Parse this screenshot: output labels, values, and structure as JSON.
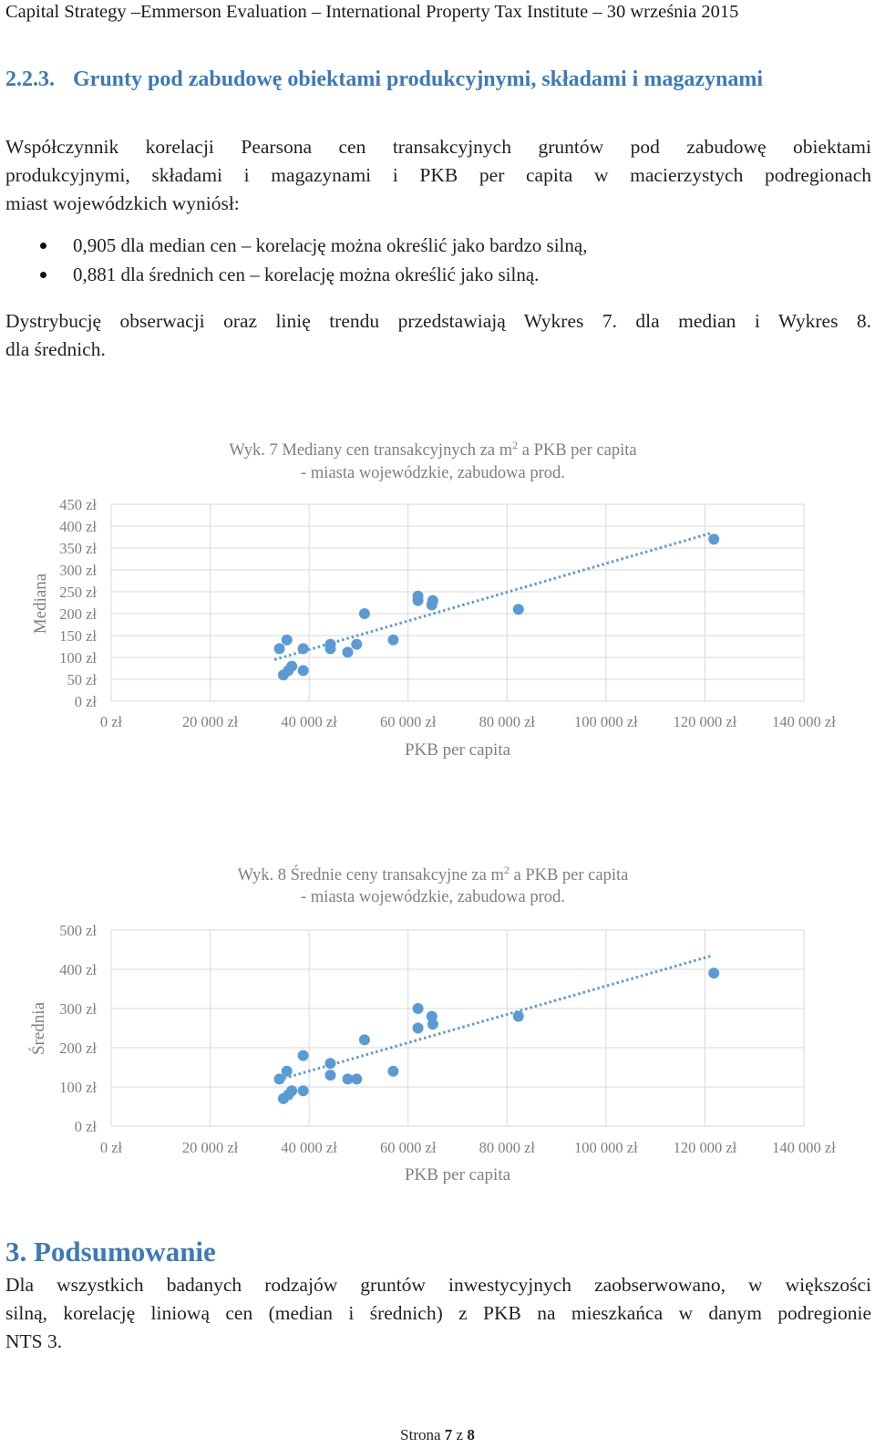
{
  "header": "Capital Strategy –Emmerson Evaluation – International Property Tax Institute – 30 września 2015",
  "section": {
    "number": "2.2.3.",
    "title": "Grunty pod zabudowę obiektami produkcyjnymi, składami i magazynami"
  },
  "intro_lines": [
    "Współczynnik korelacji Pearsona cen transakcyjnych gruntów pod zabudowę obiektami",
    "produkcyjnymi, składami i magazynami i PKB per capita w macierzystych podregionach",
    "miast wojewódzkich wyniósł:"
  ],
  "bullets": [
    "0,905 dla median cen – korelację można określić jako bardzo silną,",
    "0,881 dla średnich cen – korelację można określić jako silną."
  ],
  "distribution_lines": [
    "Dystrybucję obserwacji oraz linię trendu przedstawiają Wykres 7. dla median i Wykres 8.",
    "dla średnich."
  ],
  "chart_data": [
    {
      "type": "scatter",
      "title_pre": "Wyk. 7 Mediany cen transakcyjnych za m",
      "title_sup": "2",
      "title_post": " a PKB per capita",
      "title_line2": "- miasta wojewódzkie, zabudowa prod.",
      "xlabel": "PKB per capita",
      "ylabel": "Mediana",
      "xlim": [
        0,
        140000
      ],
      "ylim": [
        0,
        450
      ],
      "x_ticks": [
        0,
        20000,
        40000,
        60000,
        80000,
        100000,
        120000,
        140000
      ],
      "x_tick_labels": [
        "0 zł",
        "20 000 zł",
        "40 000 zł",
        "60 000 zł",
        "80 000 zł",
        "100 000 zł",
        "120 000 zł",
        "140 000 zł"
      ],
      "y_ticks": [
        0,
        50,
        100,
        150,
        200,
        250,
        300,
        350,
        400,
        450
      ],
      "y_tick_labels": [
        "0 zł",
        "50 zł",
        "100 zł",
        "150 zł",
        "200 zł",
        "250 zł",
        "300 zł",
        "350 zł",
        "400 zł",
        "450 zł"
      ],
      "points": [
        {
          "x": 34000,
          "y": 120
        },
        {
          "x": 35500,
          "y": 140
        },
        {
          "x": 34800,
          "y": 60
        },
        {
          "x": 35800,
          "y": 70
        },
        {
          "x": 36500,
          "y": 80
        },
        {
          "x": 38800,
          "y": 120
        },
        {
          "x": 38800,
          "y": 70
        },
        {
          "x": 44300,
          "y": 130
        },
        {
          "x": 44300,
          "y": 120
        },
        {
          "x": 47800,
          "y": 112
        },
        {
          "x": 49600,
          "y": 130
        },
        {
          "x": 51200,
          "y": 200
        },
        {
          "x": 57000,
          "y": 140
        },
        {
          "x": 62000,
          "y": 240
        },
        {
          "x": 62000,
          "y": 230
        },
        {
          "x": 64800,
          "y": 220
        },
        {
          "x": 65000,
          "y": 230
        },
        {
          "x": 82300,
          "y": 210
        },
        {
          "x": 121800,
          "y": 370
        }
      ],
      "trend": {
        "x1": 33000,
        "y1": 95,
        "x2": 121500,
        "y2": 385
      }
    },
    {
      "type": "scatter",
      "title_pre": "Wyk. 8 Średnie ceny transakcyjne za m",
      "title_sup": "2",
      "title_post": " a PKB per capita",
      "title_line2": "- miasta wojewódzkie, zabudowa prod.",
      "xlabel": "PKB per capita",
      "ylabel": "Średnia",
      "xlim": [
        0,
        140000
      ],
      "ylim": [
        0,
        500
      ],
      "x_ticks": [
        0,
        20000,
        40000,
        60000,
        80000,
        100000,
        120000,
        140000
      ],
      "x_tick_labels": [
        "0 zł",
        "20 000 zł",
        "40 000 zł",
        "60 000 zł",
        "80 000 zł",
        "100 000 zł",
        "120 000 zł",
        "140 000 zł"
      ],
      "y_ticks": [
        0,
        100,
        200,
        300,
        400,
        500
      ],
      "y_tick_labels": [
        "0 zł",
        "100 zł",
        "200 zł",
        "300 zł",
        "400 zł",
        "500 zł"
      ],
      "points": [
        {
          "x": 34000,
          "y": 120
        },
        {
          "x": 35500,
          "y": 140
        },
        {
          "x": 34800,
          "y": 70
        },
        {
          "x": 35800,
          "y": 80
        },
        {
          "x": 36500,
          "y": 90
        },
        {
          "x": 38800,
          "y": 180
        },
        {
          "x": 38800,
          "y": 90
        },
        {
          "x": 44300,
          "y": 160
        },
        {
          "x": 44300,
          "y": 130
        },
        {
          "x": 47800,
          "y": 120
        },
        {
          "x": 49600,
          "y": 120
        },
        {
          "x": 51200,
          "y": 220
        },
        {
          "x": 57000,
          "y": 140
        },
        {
          "x": 62000,
          "y": 300
        },
        {
          "x": 62000,
          "y": 250
        },
        {
          "x": 64800,
          "y": 280
        },
        {
          "x": 65000,
          "y": 260
        },
        {
          "x": 82300,
          "y": 280
        },
        {
          "x": 121800,
          "y": 390
        }
      ],
      "trend": {
        "x1": 33000,
        "y1": 115,
        "x2": 121500,
        "y2": 435
      }
    }
  ],
  "summary": {
    "heading_num": "3.",
    "heading_text": "Podsumowanie",
    "lines": [
      "Dla wszystkich badanych rodzajów gruntów inwestycyjnych zaobserwowano, w większości",
      "silną, korelację liniową cen (median i średnich) z PKB na mieszkańca w danym podregionie",
      "NTS 3."
    ]
  },
  "footer": {
    "prefix": "Strona ",
    "page": "7",
    "middle": " z ",
    "total": "8"
  }
}
